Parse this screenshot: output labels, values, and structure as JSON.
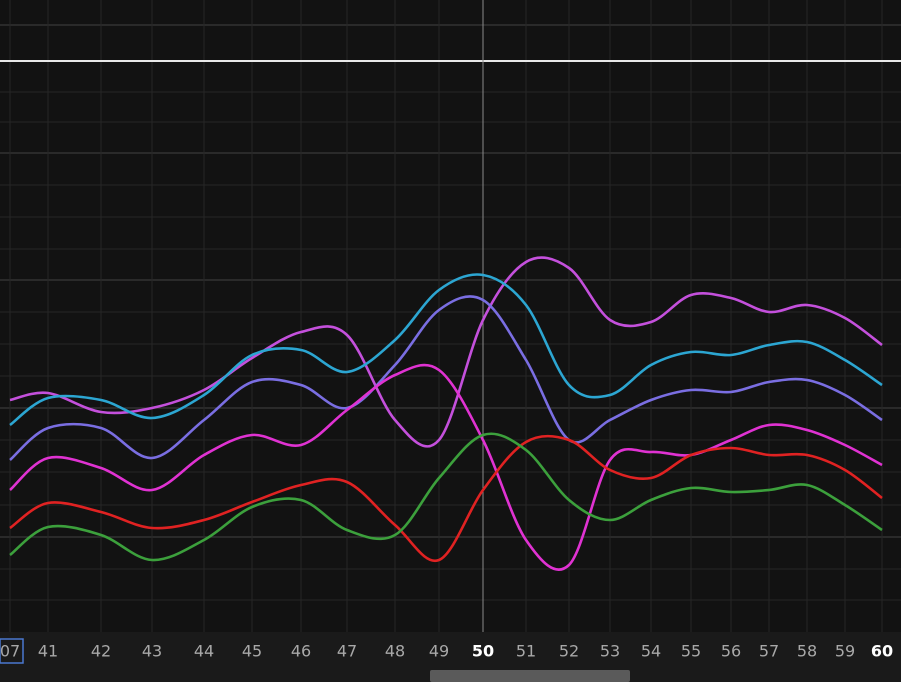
{
  "chart_data": {
    "type": "line",
    "categories": [
      "07",
      "41",
      "42",
      "43",
      "44",
      "45",
      "46",
      "47",
      "48",
      "49",
      "50",
      "51",
      "52",
      "53",
      "54",
      "55",
      "56",
      "57",
      "58",
      "59",
      "60"
    ],
    "ylim": [
      0,
      630
    ],
    "series": [
      {
        "color": "#c450dc",
        "values": [
          230,
          237,
          218,
          222,
          240,
          272,
          298,
          295,
          210,
          190,
          310,
          368,
          362,
          310,
          308,
          335,
          332,
          318,
          325,
          312,
          285
        ]
      },
      {
        "color": "#2ca6d2",
        "values": [
          205,
          232,
          230,
          212,
          235,
          275,
          280,
          258,
          290,
          340,
          355,
          325,
          245,
          235,
          265,
          278,
          275,
          285,
          288,
          270,
          245
        ]
      },
      {
        "color": "#7a6ee2",
        "values": [
          170,
          202,
          202,
          172,
          210,
          248,
          245,
          222,
          265,
          320,
          330,
          270,
          190,
          210,
          230,
          240,
          238,
          248,
          250,
          235,
          210
        ]
      },
      {
        "color": "#e032d2",
        "values": [
          140,
          172,
          162,
          140,
          175,
          195,
          185,
          220,
          255,
          260,
          190,
          90,
          65,
          170,
          178,
          175,
          190,
          205,
          200,
          185,
          165
        ]
      },
      {
        "color": "#e02222",
        "values": [
          102,
          127,
          118,
          102,
          110,
          128,
          145,
          148,
          105,
          70,
          140,
          188,
          190,
          160,
          152,
          175,
          182,
          175,
          175,
          160,
          132
        ]
      },
      {
        "color": "#3ca03c",
        "values": [
          75,
          103,
          95,
          70,
          90,
          123,
          130,
          100,
          95,
          152,
          195,
          180,
          130,
          110,
          130,
          142,
          138,
          140,
          145,
          125,
          100
        ]
      }
    ]
  }
}
